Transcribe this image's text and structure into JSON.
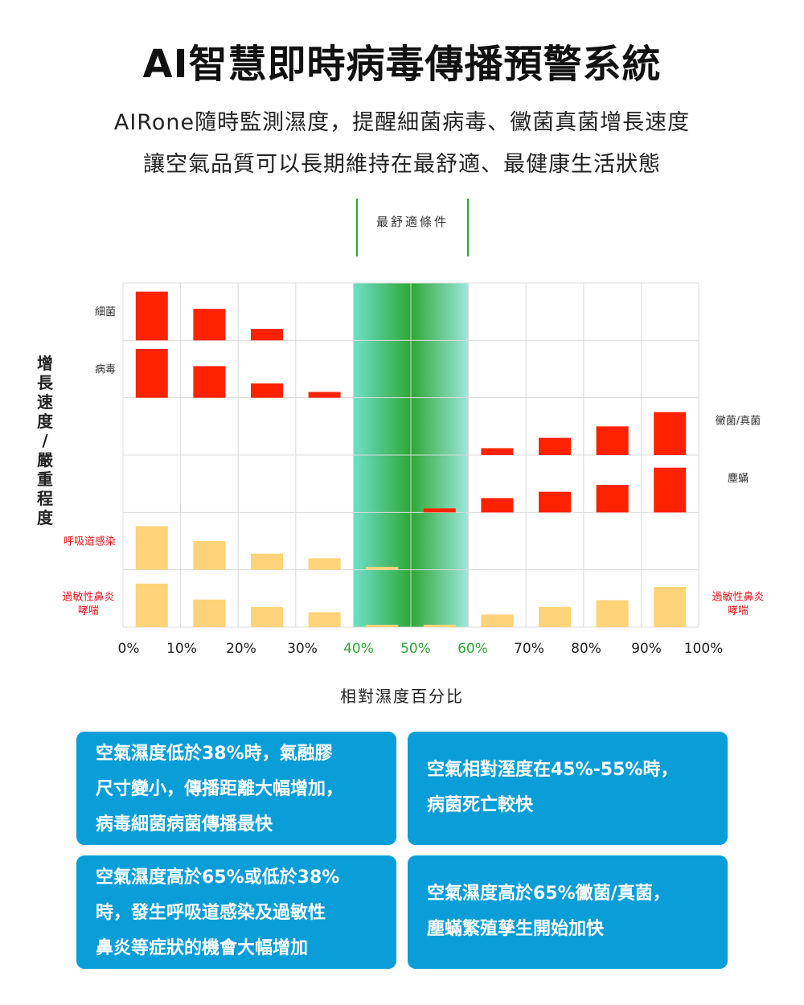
{
  "header": {
    "title": "AI智慧即時病毒傳播預警系統",
    "subtitle1": "AIRone隨時監測濕度，提醒細菌病毒、黴菌真菌增長速度",
    "subtitle2": "讓空氣品質可以長期維持在最舒適、最健康生活狀態"
  },
  "comfort_label": "最舒適條件",
  "colors": {
    "red_bar": "#ff2200",
    "yellow_bar": "#ffd37a",
    "comfort_green": "#2ea836",
    "comfort_teal": "#6ee0c9",
    "box_blue": "#0a9ed9",
    "label_red": "#e8161c"
  },
  "chart_data": {
    "type": "bar",
    "xlabel": "相對濕度百分比",
    "ylabel": "增長速度/嚴重程度",
    "x_ticks": [
      "0%",
      "10%",
      "20%",
      "30%",
      "40%",
      "50%",
      "60%",
      "70%",
      "80%",
      "90%",
      "100%"
    ],
    "comfort_zone": [
      40,
      60
    ],
    "x_range": [
      0,
      100
    ],
    "rows": [
      {
        "label": "細菌",
        "label_side": "left",
        "color": "red",
        "values": [
          [
            5,
            0.85
          ],
          [
            15,
            0.55
          ],
          [
            25,
            0.2
          ]
        ]
      },
      {
        "label": "病毒",
        "label_side": "left",
        "color": "red",
        "values": [
          [
            5,
            0.85
          ],
          [
            15,
            0.55
          ],
          [
            25,
            0.25
          ],
          [
            35,
            0.1
          ]
        ]
      },
      {
        "label": "黴菌/真菌",
        "label_side": "right",
        "color": "red",
        "values": [
          [
            65,
            0.12
          ],
          [
            75,
            0.3
          ],
          [
            85,
            0.5
          ],
          [
            95,
            0.75
          ]
        ]
      },
      {
        "label": "塵蟎",
        "label_side": "right",
        "color": "red",
        "values": [
          [
            55,
            0.07
          ],
          [
            65,
            0.25
          ],
          [
            75,
            0.36
          ],
          [
            85,
            0.48
          ],
          [
            95,
            0.78
          ]
        ]
      },
      {
        "label": "呼吸道感染",
        "label_side": "left",
        "color": "yellow",
        "values": [
          [
            5,
            0.76
          ],
          [
            15,
            0.5
          ],
          [
            25,
            0.28
          ],
          [
            35,
            0.2
          ],
          [
            45,
            0.05
          ]
        ]
      },
      {
        "label": "過敏性鼻炎\n哮喘",
        "label_side": "both",
        "color": "yellow",
        "values": [
          [
            5,
            0.76
          ],
          [
            15,
            0.48
          ],
          [
            25,
            0.35
          ],
          [
            35,
            0.26
          ],
          [
            45,
            0.04
          ],
          [
            55,
            0.04
          ],
          [
            65,
            0.22
          ],
          [
            75,
            0.35
          ],
          [
            85,
            0.47
          ],
          [
            95,
            0.7
          ]
        ]
      }
    ]
  },
  "boxes": [
    {
      "lines": [
        "空氣濕度低於38%時，氣融膠",
        "尺寸變小，傳播距離大幅增加，",
        "病毒細菌病菌傳播最快"
      ]
    },
    {
      "lines": [
        "空氣相對溼度在45%-55%時，",
        "病菌死亡較快"
      ]
    },
    {
      "lines": [
        "空氣濕度高於65%或低於38%",
        "時，發生呼吸道感染及過敏性",
        "鼻炎等症狀的機會大幅增加"
      ]
    },
    {
      "lines": [
        "空氣濕度高於65%黴菌/真菌，",
        "塵蟎繁殖孳生開始加快"
      ]
    }
  ]
}
